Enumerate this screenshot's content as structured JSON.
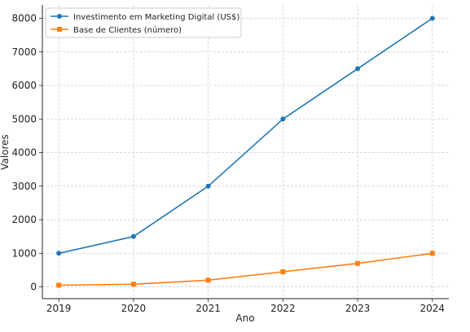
{
  "chart_data": {
    "type": "line",
    "title": "",
    "xlabel": "Ano",
    "ylabel": "Valores",
    "x": [
      2019,
      2020,
      2021,
      2022,
      2023,
      2024
    ],
    "xlim": [
      2018.78,
      2024.22
    ],
    "ylim": [
      -350,
      8400
    ],
    "yticks": [
      0,
      1000,
      2000,
      3000,
      4000,
      5000,
      6000,
      7000,
      8000
    ],
    "grid": true,
    "legend_position": "top-left",
    "series": [
      {
        "name": "Investimento em Marketing Digital (US$)",
        "color": "#1f77b4",
        "marker": "circle",
        "values": [
          1000,
          1500,
          3000,
          5000,
          6500,
          8000
        ]
      },
      {
        "name": "Base de Clientes (número)",
        "color": "#ff7f0e",
        "marker": "square",
        "values": [
          50,
          80,
          200,
          450,
          700,
          1000
        ]
      }
    ]
  }
}
